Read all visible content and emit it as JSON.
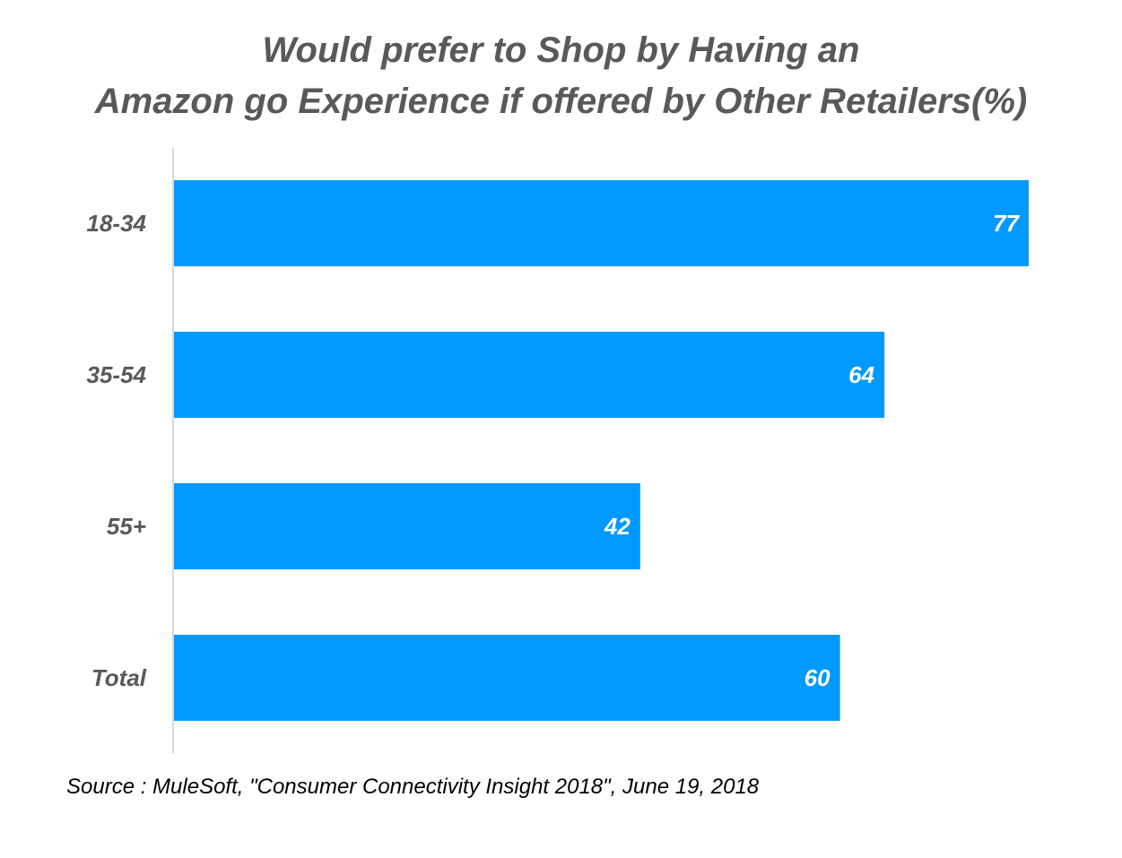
{
  "chart_data": {
    "type": "bar",
    "orientation": "horizontal",
    "title_lines": [
      "Would prefer to Shop by Having an",
      "Amazon go Experience if offered by Other Retailers(%)"
    ],
    "categories": [
      "18-34",
      "35-54",
      "55+",
      "Total"
    ],
    "values": [
      77,
      64,
      42,
      60
    ],
    "xlim": [
      0,
      77
    ],
    "grid": false,
    "bar_color": "#0099FF",
    "xlabel": "",
    "ylabel": ""
  },
  "source": "Source : MuleSoft, \"Consumer Connectivity Insight 2018\", June 19, 2018"
}
